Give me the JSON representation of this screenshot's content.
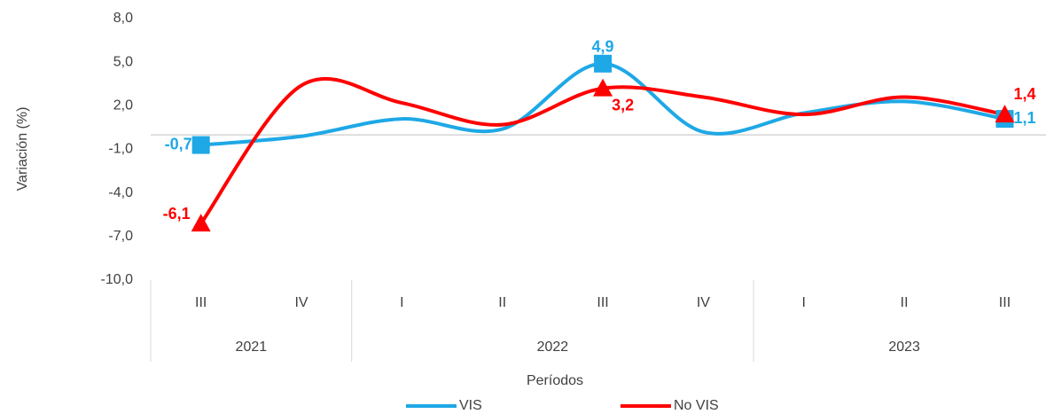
{
  "chart_data": {
    "type": "line",
    "y_label": "Variación (%)",
    "x_label": "Períodos",
    "categories": [
      "III",
      "IV",
      "I",
      "II",
      "III",
      "IV",
      "I",
      "II",
      "III"
    ],
    "x_groups": [
      {
        "label": "2021",
        "count": 2
      },
      {
        "label": "2022",
        "count": 4
      },
      {
        "label": "2023",
        "count": 3
      }
    ],
    "ylim": [
      -10,
      8
    ],
    "yticks": [
      {
        "value": -10,
        "label": "-10,0"
      },
      {
        "value": -7,
        "label": "-7,0"
      },
      {
        "value": -4,
        "label": "-4,0"
      },
      {
        "value": -1,
        "label": "-1,0"
      },
      {
        "value": 2,
        "label": "2,0"
      },
      {
        "value": 5,
        "label": "5,0"
      },
      {
        "value": 8,
        "label": "8,0"
      }
    ],
    "smooth": true,
    "legend": "bottom",
    "series": [
      {
        "name": "VIS",
        "color": "#1ea8e6",
        "marker": "square",
        "values": [
          -0.7,
          -0.1,
          1.1,
          0.4,
          4.9,
          0.2,
          1.5,
          2.3,
          1.1
        ],
        "value_labels": [
          "-0,7",
          null,
          null,
          null,
          "4,9",
          null,
          null,
          null,
          "1,1"
        ]
      },
      {
        "name": "No VIS",
        "color": "#ff0000",
        "marker": "triangle",
        "values": [
          -6.1,
          3.4,
          2.2,
          0.7,
          3.2,
          2.6,
          1.4,
          2.6,
          1.4
        ],
        "value_labels": [
          "-6,1",
          null,
          null,
          null,
          "3,2",
          null,
          null,
          null,
          "1,4"
        ]
      }
    ]
  }
}
